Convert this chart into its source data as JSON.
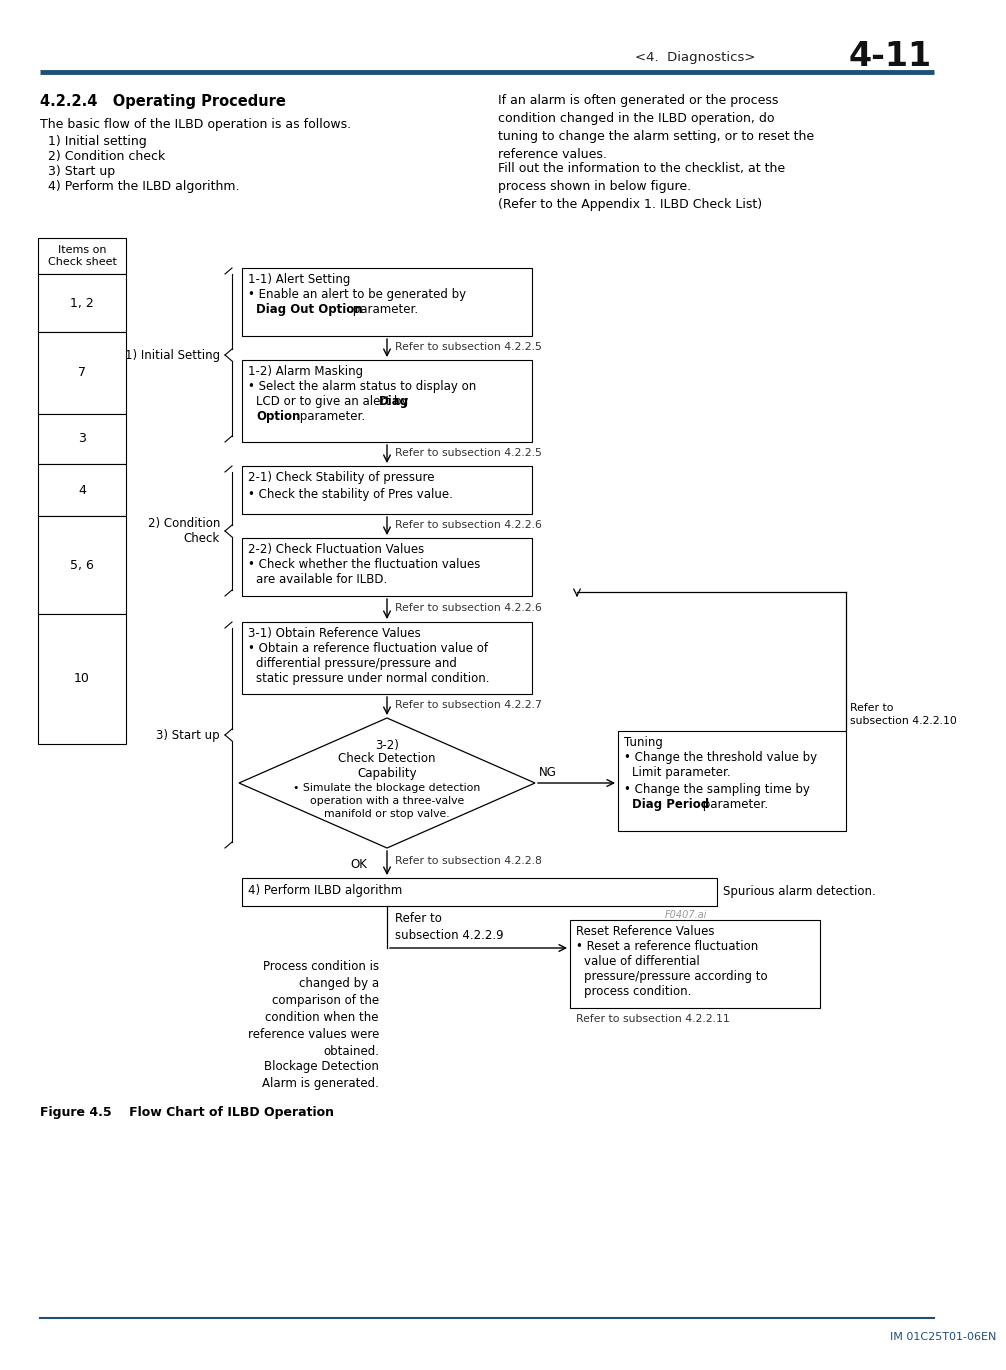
{
  "page_title": "<4.  Diagnostics>",
  "page_num": "4-11",
  "section_title": "4.2.2.4   Operating Procedure",
  "footer": "IM 01C25T01-06EN",
  "bg_color": "#ffffff",
  "header_line_color": "#1f4e79",
  "body_left_para1": "The basic flow of the ILBD operation is as follows.",
  "body_left_items": [
    "  1) Initial setting",
    "  2) Condition check",
    "  3) Start up",
    "  4) Perform the ILBD algorithm."
  ],
  "body_right_para1": "If an alarm is often generated or the process\ncondition changed in the ILBD operation, do\ntuning to change the alarm setting, or to reset the\nreference values.",
  "body_right_para2": "Fill out the information to the checklist, at the\nprocess shown in below figure.\n(Refer to the Appendix 1. ILBD Check List)",
  "figure_caption": "Figure 4.5    Flow Chart of ILBD Operation",
  "watermark": "F0407.ai"
}
